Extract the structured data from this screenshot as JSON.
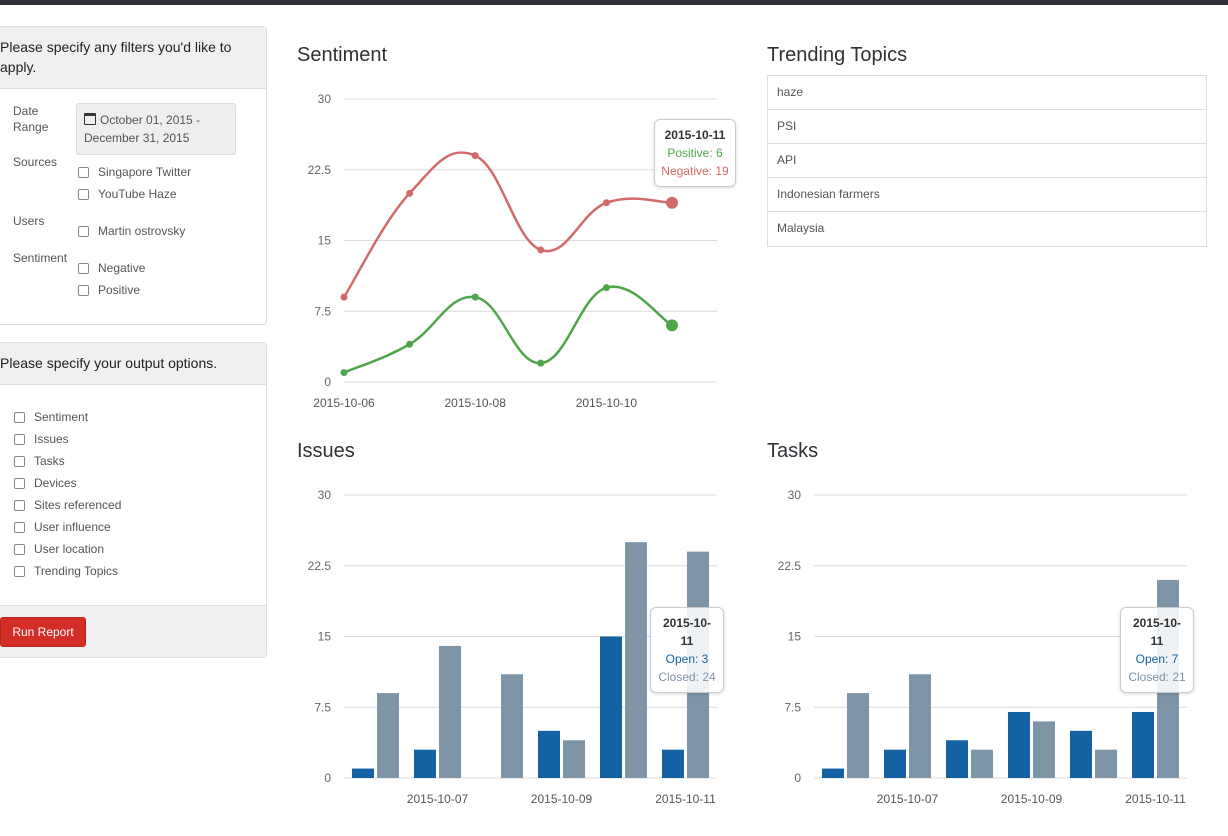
{
  "filters": {
    "heading": "Please specify any filters you'd like to apply.",
    "date_range_label": "Date Range",
    "date_range_value": "October 01, 2015 - December 31, 2015",
    "sources_label": "Sources",
    "sources": [
      "Singapore Twitter",
      "YouTube Haze"
    ],
    "users_label": "Users",
    "users": [
      "Martin ostrovsky"
    ],
    "sentiment_label": "Sentiment",
    "sentiment_options": [
      "Negative",
      "Positive"
    ]
  },
  "output": {
    "heading": "Please specify your output options.",
    "options": [
      "Sentiment",
      "Issues",
      "Tasks",
      "Devices",
      "Sites referenced",
      "User influence",
      "User location",
      "Trending Topics"
    ],
    "run_button": "Run Report"
  },
  "trending": {
    "title": "Trending Topics",
    "topics": [
      "haze",
      "PSI",
      "API",
      "Indonesian farmers",
      "Malaysia"
    ]
  },
  "colors": {
    "positive": "#4fa64a",
    "negative": "#d36a6a",
    "open": "#1462a4",
    "closed": "#7e95a8",
    "run_button": "#d32d27"
  },
  "chart_data": [
    {
      "id": "sentiment",
      "type": "line",
      "title": "Sentiment",
      "x": [
        "2015-10-06",
        "2015-10-07",
        "2015-10-08",
        "2015-10-09",
        "2015-10-10",
        "2015-10-11"
      ],
      "x_tick_labels": [
        "2015-10-06",
        "2015-10-08",
        "2015-10-10"
      ],
      "y_ticks": [
        "0",
        "7.5",
        "15",
        "22.5",
        "30"
      ],
      "ylim": [
        0,
        30
      ],
      "grid": true,
      "series": [
        {
          "name": "Positive",
          "values": [
            1,
            4,
            9,
            2,
            10,
            6
          ]
        },
        {
          "name": "Negative",
          "values": [
            9,
            20,
            24,
            14,
            19,
            19
          ]
        }
      ],
      "tooltip": {
        "title": "2015-10-11",
        "lines": [
          "Positive: 6",
          "Negative: 19"
        ]
      }
    },
    {
      "id": "issues",
      "type": "bar",
      "title": "Issues",
      "categories": [
        "2015-10-06",
        "2015-10-07",
        "2015-10-08",
        "2015-10-09",
        "2015-10-10",
        "2015-10-11"
      ],
      "x_tick_labels": [
        "2015-10-07",
        "2015-10-09",
        "2015-10-11"
      ],
      "y_ticks": [
        "0",
        "7.5",
        "15",
        "22.5",
        "30"
      ],
      "ylim": [
        0,
        30
      ],
      "grid": true,
      "series": [
        {
          "name": "Open",
          "values": [
            1,
            3,
            0,
            5,
            15,
            3
          ]
        },
        {
          "name": "Closed",
          "values": [
            9,
            14,
            11,
            4,
            25,
            24
          ]
        }
      ],
      "tooltip": {
        "title": "2015-10-11",
        "lines": [
          "Open: 3",
          "Closed: 24"
        ]
      }
    },
    {
      "id": "tasks",
      "type": "bar",
      "title": "Tasks",
      "categories": [
        "2015-10-06",
        "2015-10-07",
        "2015-10-08",
        "2015-10-09",
        "2015-10-10",
        "2015-10-11"
      ],
      "x_tick_labels": [
        "2015-10-07",
        "2015-10-09",
        "2015-10-11"
      ],
      "y_ticks": [
        "0",
        "7.5",
        "15",
        "22.5",
        "30"
      ],
      "ylim": [
        0,
        30
      ],
      "grid": true,
      "series": [
        {
          "name": "Open",
          "values": [
            1,
            3,
            4,
            7,
            5,
            7
          ]
        },
        {
          "name": "Closed",
          "values": [
            9,
            11,
            3,
            6,
            3,
            21
          ]
        }
      ],
      "tooltip": {
        "title": "2015-10-11",
        "lines": [
          "Open: 7",
          "Closed: 21"
        ]
      }
    }
  ]
}
